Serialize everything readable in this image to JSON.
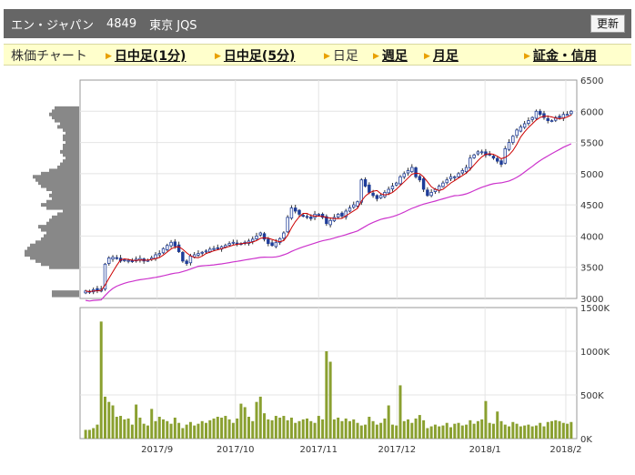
{
  "header": {
    "company": "エン・ジャパン",
    "code": "4849",
    "market": "東京 JQS",
    "update_label": "更新"
  },
  "tabs": [
    {
      "label": "株価チャート",
      "link": false,
      "arrow": false
    },
    {
      "label": "日中足(1分)",
      "link": true,
      "arrow": true
    },
    {
      "label": "日中足(5分)",
      "link": true,
      "arrow": true
    },
    {
      "label": "日足",
      "link": false,
      "arrow": true
    },
    {
      "label": "週足",
      "link": true,
      "arrow": true
    },
    {
      "label": "月足",
      "link": true,
      "arrow": true
    },
    {
      "label": "証金・信用",
      "link": true,
      "arrow": true
    }
  ],
  "colors": {
    "header_bg": "#666666",
    "tabbar_bg": "#ffffcc",
    "up_candle": "#ffffff",
    "down_candle": "#1f3d99",
    "ma_short": "#cc0000",
    "ma_long": "#cc33cc",
    "volume": "#8aa030",
    "volume_profile": "#888888"
  },
  "chart_data": [
    {
      "type": "candlestick",
      "ylim": [
        3000,
        6500
      ],
      "yticks": [
        "3000",
        "3500",
        "4000",
        "4500",
        "5000",
        "5500",
        "6000",
        "6500"
      ],
      "xticks": [
        "2017/9",
        "2017/10",
        "2017/11",
        "2017/12",
        "2018/1",
        "2018/2"
      ],
      "close": [
        3120,
        3100,
        3140,
        3130,
        3150,
        3550,
        3650,
        3660,
        3640,
        3600,
        3620,
        3610,
        3590,
        3630,
        3640,
        3600,
        3610,
        3650,
        3700,
        3720,
        3800,
        3850,
        3900,
        3840,
        3750,
        3600,
        3560,
        3680,
        3700,
        3720,
        3740,
        3760,
        3790,
        3800,
        3810,
        3830,
        3850,
        3880,
        3900,
        3880,
        3870,
        3900,
        3920,
        3950,
        4000,
        4050,
        3950,
        3880,
        3850,
        3900,
        3960,
        4050,
        4300,
        4450,
        4400,
        4350,
        4320,
        4300,
        4280,
        4350,
        4350,
        4300,
        4200,
        4250,
        4300,
        4350,
        4320,
        4400,
        4450,
        4500,
        4550,
        4900,
        4800,
        4700,
        4650,
        4600,
        4650,
        4700,
        4750,
        4800,
        4850,
        4950,
        5000,
        5050,
        5100,
        4950,
        4900,
        4750,
        4650,
        4700,
        4750,
        4800,
        4850,
        4900,
        4950,
        4950,
        5000,
        5050,
        5100,
        5250,
        5300,
        5350,
        5350,
        5300,
        5300,
        5250,
        5200,
        5150,
        5400,
        5500,
        5600,
        5700,
        5750,
        5800,
        5850,
        5900,
        6000,
        5950,
        5900,
        5850,
        5850,
        5900,
        5900,
        5950,
        5950,
        6000
      ],
      "ma_short_label": "",
      "ma_long_label": "",
      "volume_profile": [
        3050,
        3100,
        3500,
        3550,
        3600,
        3650,
        3700,
        3750,
        3800,
        3850,
        3900,
        3950,
        4000,
        4050,
        4100,
        4150,
        4200,
        4250,
        4300,
        4350,
        4400,
        4450,
        4500,
        4550,
        4600,
        4650,
        4700,
        4750,
        4800,
        4850,
        4900,
        4950,
        5000,
        5050,
        5100,
        5150,
        5200,
        5250,
        5300,
        5350,
        5400,
        5450,
        5500,
        5550,
        5600,
        5650,
        5700,
        5750,
        5800,
        5850,
        5900,
        5950,
        6000,
        6050
      ],
      "volume_profile_values": [
        0.5,
        0.5,
        0.55,
        0.7,
        0.8,
        0.9,
        1.0,
        1.0,
        0.95,
        0.9,
        0.8,
        0.7,
        0.65,
        0.6,
        0.7,
        0.75,
        0.6,
        0.55,
        0.5,
        0.4,
        0.3,
        0.6,
        0.7,
        0.6,
        0.5,
        0.55,
        0.5,
        0.6,
        0.7,
        0.75,
        0.8,
        0.85,
        0.7,
        0.55,
        0.4,
        0.35,
        0.3,
        0.25,
        0.3,
        0.35,
        0.3,
        0.3,
        0.25,
        0.3,
        0.3,
        0.25,
        0.3,
        0.4,
        0.35,
        0.45,
        0.5,
        0.55,
        0.5,
        0.45
      ]
    },
    {
      "type": "bar",
      "ylim": [
        0,
        1500000
      ],
      "yticks": [
        "0K",
        "500K",
        "1000K",
        "1500K"
      ],
      "values": [
        100000,
        100000,
        120000,
        160000,
        1340000,
        480000,
        420000,
        380000,
        250000,
        260000,
        220000,
        230000,
        160000,
        390000,
        240000,
        170000,
        150000,
        340000,
        200000,
        250000,
        220000,
        200000,
        170000,
        240000,
        180000,
        120000,
        160000,
        190000,
        150000,
        170000,
        200000,
        180000,
        210000,
        230000,
        250000,
        240000,
        260000,
        220000,
        180000,
        230000,
        400000,
        360000,
        250000,
        200000,
        420000,
        480000,
        290000,
        220000,
        210000,
        260000,
        240000,
        260000,
        210000,
        240000,
        180000,
        200000,
        220000,
        230000,
        200000,
        180000,
        260000,
        220000,
        1000000,
        880000,
        220000,
        240000,
        200000,
        230000,
        200000,
        220000,
        180000,
        150000,
        160000,
        250000,
        200000,
        160000,
        180000,
        230000,
        380000,
        160000,
        150000,
        610000,
        200000,
        220000,
        180000,
        230000,
        270000,
        210000,
        120000,
        140000,
        160000,
        140000,
        150000,
        180000,
        130000,
        170000,
        180000,
        150000,
        160000,
        210000,
        170000,
        200000,
        220000,
        430000,
        180000,
        170000,
        310000,
        200000,
        160000,
        140000,
        190000,
        170000,
        140000,
        150000,
        160000,
        140000,
        150000,
        180000,
        140000,
        190000,
        200000,
        210000,
        200000,
        180000,
        170000,
        190000
      ]
    }
  ]
}
